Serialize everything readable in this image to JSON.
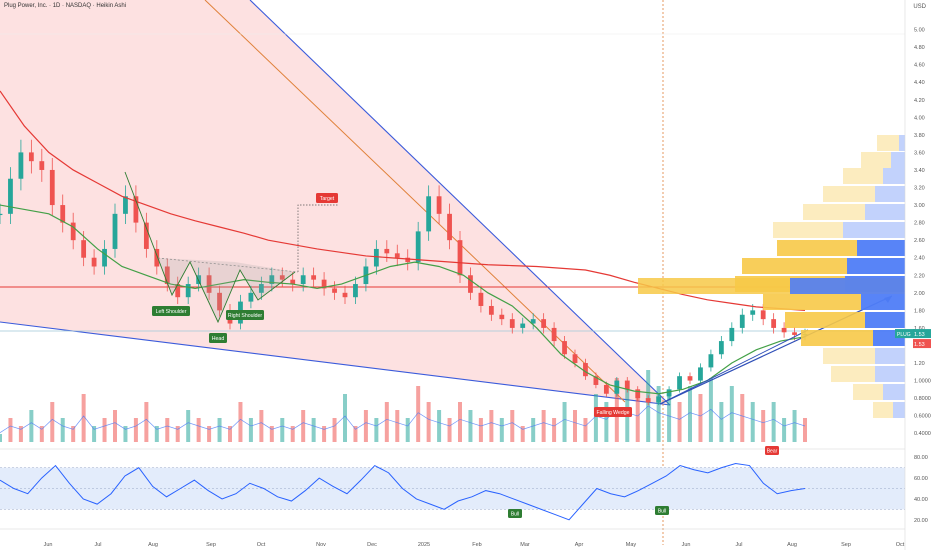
{
  "header": {
    "title": "Plug Power, Inc. · 1D · NASDAQ · Heikin Ashi",
    "currency": "USD"
  },
  "colors": {
    "up": "#26a69a",
    "down": "#ef5350",
    "wedge_fill": "#fddcdc",
    "wedge_line": "#3b5bdb",
    "ma_slow": "#e53935",
    "ma_fast": "#43a047",
    "rsi_line": "#2962ff",
    "rsi_band": "#e3ecfb",
    "vp_blue": "#4f7df7",
    "vp_yellow": "#f7c948",
    "price_tag": "#26a69a",
    "price_tag2": "#ef5350"
  },
  "chart_data": [
    {
      "type": "line",
      "panel": "price",
      "ylim": [
        0.3,
        5.2
      ],
      "yticks": [
        "5.00",
        "4.80",
        "4.60",
        "4.40",
        "4.20",
        "4.00",
        "3.80",
        "3.60",
        "3.40",
        "3.20",
        "3.00",
        "2.80",
        "2.60",
        "2.40",
        "2.20",
        "2.00",
        "1.80",
        "1.60",
        "1.40",
        "1.20",
        "1.0000",
        "0.8000",
        "0.6000",
        "0.4000"
      ],
      "x_labels": [
        "Jun",
        "Jul",
        "Aug",
        "Sep",
        "Oct",
        "Nov",
        "Dec",
        "2025",
        "Feb",
        "Mar",
        "Apr",
        "May",
        "Jun",
        "Jul",
        "Aug",
        "Sep",
        "Oct"
      ],
      "series": [
        {
          "kind": "price",
          "values": [
            2.9,
            3.3,
            3.6,
            3.5,
            3.4,
            3.0,
            2.8,
            2.6,
            2.4,
            2.3,
            2.5,
            2.9,
            3.1,
            2.8,
            2.5,
            2.3,
            2.1,
            1.95,
            2.1,
            2.2,
            2.0,
            1.8,
            1.65,
            1.9,
            2.0,
            2.1,
            2.2,
            2.15,
            2.1,
            2.2,
            2.15,
            2.05,
            2.0,
            1.95,
            2.1,
            2.3,
            2.5,
            2.45,
            2.4,
            2.35,
            2.7,
            3.1,
            2.9,
            2.6,
            2.2,
            2.0,
            1.85,
            1.75,
            1.7,
            1.6,
            1.65,
            1.7,
            1.6,
            1.45,
            1.3,
            1.2,
            1.05,
            0.95,
            0.85,
            1.0,
            0.9,
            0.8,
            0.75,
            0.82,
            0.9,
            1.05,
            1.0,
            1.15,
            1.3,
            1.45,
            1.6,
            1.75,
            1.8,
            1.7,
            1.6,
            1.55,
            1.52,
            1.53
          ]
        },
        {
          "kind": "ma_slow",
          "values": [
            4.3,
            3.9,
            3.6,
            3.4,
            3.25,
            3.1,
            3.0,
            2.9,
            2.82,
            2.75,
            2.68,
            2.6,
            2.55,
            2.5,
            2.46,
            2.42,
            2.4,
            2.38,
            2.36,
            2.34,
            2.32,
            2.31,
            2.3,
            2.28,
            2.26,
            2.2,
            2.12,
            2.05,
            1.98,
            1.92,
            1.88,
            1.84,
            1.82,
            1.8
          ]
        },
        {
          "kind": "ma_fast",
          "values": [
            3.0,
            2.95,
            2.9,
            2.75,
            2.5,
            2.3,
            2.2,
            2.1,
            2.05,
            2.1,
            2.15,
            2.12,
            2.1,
            2.05,
            2.1,
            2.2,
            2.3,
            2.35,
            2.3,
            2.2,
            2.0,
            1.85,
            1.6,
            1.3,
            1.1,
            0.95,
            0.88,
            0.85,
            0.9,
            1.0,
            1.2,
            1.35,
            1.45,
            1.5
          ]
        }
      ],
      "last_price": "1.53",
      "last_price_2": "1.53",
      "ticker_tag": "PLUG",
      "annotations": [
        "Left Shoulder",
        "Head",
        "Right Shoulder",
        "Target",
        "Falling Wedge"
      ]
    },
    {
      "type": "bar",
      "panel": "volume",
      "values": [
        1,
        3,
        2,
        4,
        2,
        5,
        3,
        2,
        6,
        2,
        3,
        4,
        2,
        3,
        5,
        2,
        3,
        2,
        4,
        3,
        2,
        3,
        2,
        5,
        3,
        4,
        2,
        3,
        2,
        4,
        3,
        2,
        3,
        6,
        2,
        4,
        3,
        5,
        4,
        3,
        7,
        5,
        4,
        3,
        5,
        4,
        3,
        4,
        3,
        4,
        2,
        3,
        4,
        3,
        5,
        4,
        3,
        6,
        5,
        8,
        7,
        6,
        9,
        7,
        6,
        5,
        7,
        6,
        8,
        5,
        7,
        6,
        5,
        4,
        5,
        3,
        4,
        3
      ]
    },
    {
      "type": "line",
      "panel": "rsi",
      "ylim": [
        15,
        85
      ],
      "yticks": [
        "80.00",
        "60.00",
        "40.00",
        "20.00"
      ],
      "values": [
        58,
        50,
        45,
        60,
        72,
        55,
        40,
        35,
        45,
        62,
        70,
        52,
        42,
        50,
        58,
        48,
        40,
        45,
        55,
        50,
        42,
        38,
        48,
        60,
        52,
        45,
        58,
        72,
        65,
        50,
        40,
        35,
        30,
        38,
        42,
        48,
        45,
        40,
        35,
        30,
        25,
        20,
        35,
        50,
        45,
        42,
        48,
        55,
        62,
        72,
        68,
        65,
        70,
        74,
        72,
        55,
        45,
        48,
        50
      ],
      "annotations": [
        "Bull",
        "Bull",
        "Bear"
      ]
    }
  ]
}
